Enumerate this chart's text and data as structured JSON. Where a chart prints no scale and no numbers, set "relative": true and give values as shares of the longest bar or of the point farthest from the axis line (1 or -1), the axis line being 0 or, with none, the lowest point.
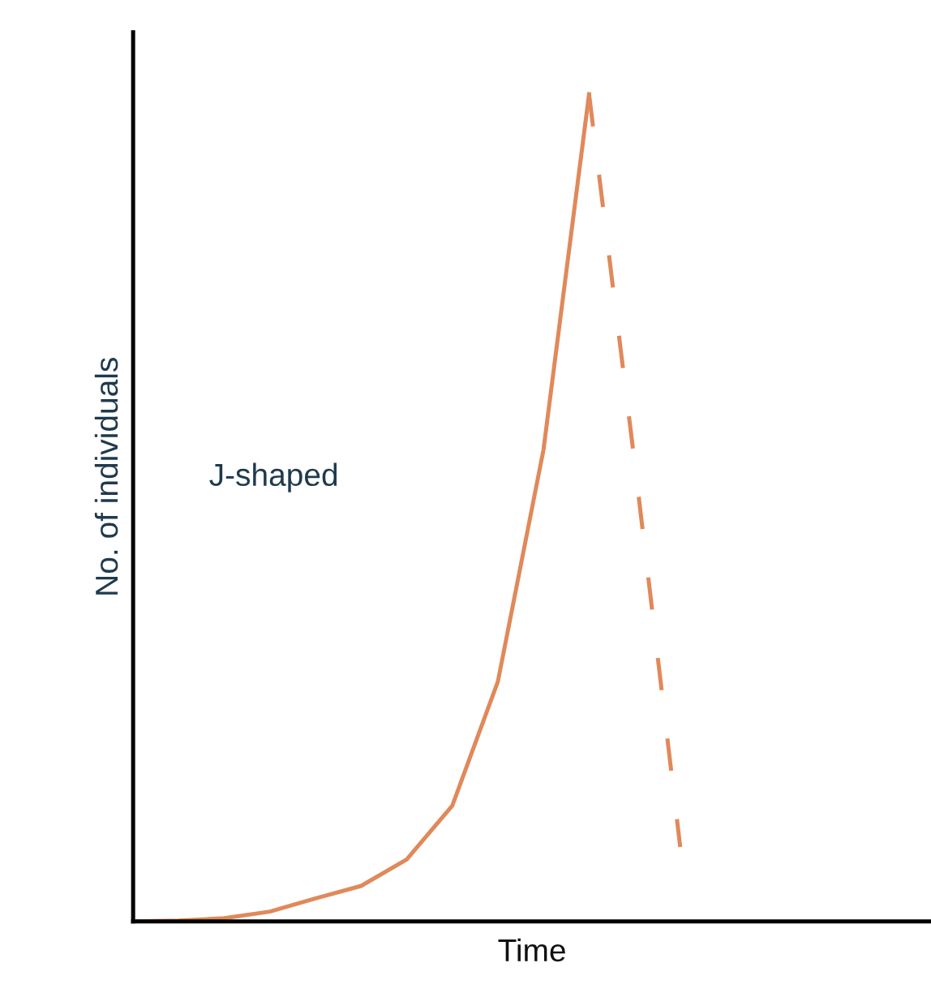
{
  "chart_data": {
    "type": "line",
    "relative": true,
    "xlabel": "Time",
    "ylabel": "No. of individuals",
    "annotations": [
      "J-shaped"
    ],
    "categories": [
      null,
      null,
      null,
      null,
      null,
      null,
      null,
      null,
      null,
      null,
      null,
      null,
      null,
      null,
      null,
      null,
      null,
      null
    ],
    "series": [
      {
        "color": "#e0895a",
        "line_style": "solid",
        "values": [
          0,
          0.001,
          0.004,
          0.012,
          0.028,
          0.043,
          0.075,
          0.14,
          0.29,
          0.57,
          1,
          null,
          null,
          null,
          null,
          null,
          null,
          null
        ]
      },
      {
        "color": "#e0895a",
        "line_style": "dashed",
        "values": [
          null,
          null,
          null,
          null,
          null,
          null,
          null,
          null,
          null,
          null,
          1,
          0.555,
          0.09,
          null,
          null,
          null,
          null,
          null
        ]
      }
    ],
    "grid": false,
    "legend": false,
    "marker": "none"
  }
}
